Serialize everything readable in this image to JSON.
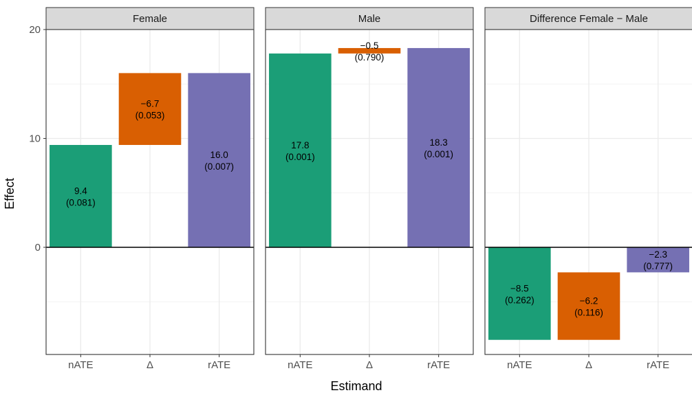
{
  "chart_data": {
    "type": "bar",
    "subtype": "faceted waterfall",
    "xlabel": "Estimand",
    "ylabel": "Effect",
    "ylim": [
      -8.8,
      20.5
    ],
    "yticks": [
      0,
      10,
      20
    ],
    "grid": true,
    "categories": [
      "nATE",
      "Δ",
      "rATE"
    ],
    "colors": {
      "nATE": "#1b9e77",
      "Δ": "#d95f02",
      "rATE": "#7570b3"
    },
    "panels": [
      {
        "title": "Female",
        "bars": [
          {
            "category": "nATE",
            "start": 0,
            "end": 9.4,
            "value": "9.4",
            "p": "(0.081)"
          },
          {
            "category": "Δ",
            "start": 9.4,
            "end": 16.0,
            "value": "−6.7",
            "p": "(0.053)"
          },
          {
            "category": "rATE",
            "start": 0,
            "end": 16.0,
            "value": "16.0",
            "p": "(0.007)"
          }
        ]
      },
      {
        "title": "Male",
        "bars": [
          {
            "category": "nATE",
            "start": 0,
            "end": 17.8,
            "value": "17.8",
            "p": "(0.001)"
          },
          {
            "category": "Δ",
            "start": 17.8,
            "end": 18.3,
            "value": "−0.5",
            "p": "(0.790)"
          },
          {
            "category": "rATE",
            "start": 0,
            "end": 18.3,
            "value": "18.3",
            "p": "(0.001)"
          }
        ]
      },
      {
        "title": "Difference Female − Male",
        "bars": [
          {
            "category": "nATE",
            "start": 0,
            "end": -8.5,
            "value": "−8.5",
            "p": "(0.262)"
          },
          {
            "category": "Δ",
            "start": -8.5,
            "end": -2.3,
            "value": "−6.2",
            "p": "(0.116)"
          },
          {
            "category": "rATE",
            "start": 0,
            "end": -2.3,
            "value": "−2.3",
            "p": "(0.777)"
          }
        ]
      }
    ]
  }
}
